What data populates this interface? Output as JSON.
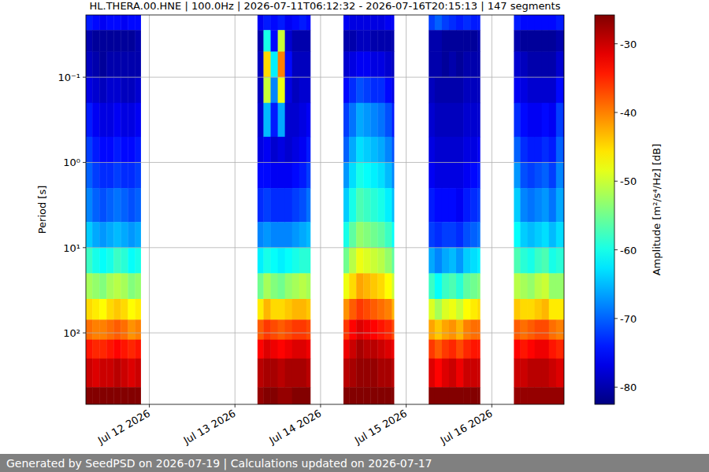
{
  "chart_data": {
    "type": "heatmap",
    "title": "HL.THERA.00.HNE | 100.0Hz | 2026-07-11T06:12:32 - 2026-07-16T20:15:13 | 147 segments",
    "y_label": "Period [s]",
    "footer": "Generated by SeedPSD on 2026-07-19 | Calculations updated on 2026-07-17",
    "log": "y",
    "grid": true,
    "xlim": [
      "2026-07-11T06:12:32",
      "2026-07-16T20:15:13"
    ],
    "xticks": [
      {
        "value": "2026-07-12T00:00:00",
        "label": "Jul 12 2026"
      },
      {
        "value": "2026-07-13T00:00:00",
        "label": "Jul 13 2026"
      },
      {
        "value": "2026-07-14T00:00:00",
        "label": "Jul 14 2026"
      },
      {
        "value": "2026-07-15T00:00:00",
        "label": "Jul 15 2026"
      },
      {
        "value": "2026-07-16T00:00:00",
        "label": "Jul 16 2026"
      }
    ],
    "ylim": [
      690,
      0.0186
    ],
    "yticks": [
      {
        "value": 0.1,
        "label": "10⁻¹"
      },
      {
        "value": 1,
        "label": "10⁰"
      },
      {
        "value": 10,
        "label": "10¹"
      },
      {
        "value": 100,
        "label": "10²"
      }
    ],
    "periods": [
      0.0186,
      0.028,
      0.05,
      0.1,
      0.2,
      0.5,
      1,
      2,
      5,
      10,
      20,
      40,
      70,
      120,
      200,
      434,
      690
    ],
    "colorbar": {
      "label": "Amplitude [m²/s⁴/Hz] [dB]",
      "range": [
        -82.5,
        -25.8
      ],
      "ticks": [
        -80,
        -70,
        -60,
        -50,
        -40,
        -30
      ]
    },
    "columns": [
      {
        "start": "2026-07-11T06:12:32",
        "end": "2026-07-11T08:00:00",
        "values": [
          -74,
          -80,
          -79,
          -77,
          -74,
          -72,
          -70,
          -68,
          -64,
          -58,
          -52,
          -45,
          -39,
          -34,
          -30,
          -26
        ]
      },
      {
        "start": "2026-07-11T08:00:00",
        "end": "2026-07-11T10:00:00",
        "values": [
          -75,
          -81,
          -80,
          -78,
          -76,
          -74,
          -72,
          -70,
          -66,
          -60,
          -53,
          -46,
          -40,
          -35,
          -31,
          -26
        ]
      },
      {
        "start": "2026-07-11T10:00:00",
        "end": "2026-07-11T12:00:00",
        "values": [
          -76,
          -81,
          -81,
          -79,
          -77,
          -75,
          -73,
          -71,
          -67,
          -61,
          -54,
          -47,
          -40,
          -35,
          -30,
          -26
        ]
      },
      {
        "start": "2026-07-11T12:00:00",
        "end": "2026-07-11T14:00:00",
        "values": [
          -75,
          -81,
          -80,
          -78,
          -77,
          -75,
          -73,
          -70,
          -66,
          -60,
          -52,
          -45,
          -39,
          -34,
          -30,
          -26
        ]
      },
      {
        "start": "2026-07-11T14:00:00",
        "end": "2026-07-11T16:00:00",
        "values": [
          -75,
          -81,
          -80,
          -78,
          -76,
          -74,
          -72,
          -69,
          -65,
          -58,
          -51,
          -44,
          -38,
          -33,
          -29,
          -26
        ]
      },
      {
        "start": "2026-07-11T16:00:00",
        "end": "2026-07-11T18:00:00",
        "values": [
          -76,
          -81,
          -80,
          -79,
          -77,
          -75,
          -73,
          -70,
          -66,
          -59,
          -52,
          -45,
          -39,
          -34,
          -30,
          -26
        ]
      },
      {
        "start": "2026-07-11T18:00:00",
        "end": "2026-07-11T20:00:00",
        "values": [
          -75,
          -81,
          -80,
          -79,
          -77,
          -75,
          -73,
          -71,
          -67,
          -61,
          -54,
          -47,
          -41,
          -35,
          -31,
          -26
        ]
      },
      {
        "start": "2026-07-11T20:00:00",
        "end": "2026-07-11T21:34:00",
        "values": [
          -75,
          -80,
          -80,
          -78,
          -76,
          -74,
          -72,
          -70,
          -66,
          -60,
          -53,
          -46,
          -40,
          -34,
          -30,
          -26
        ]
      },
      {
        "start": "2026-07-13T06:19:00",
        "end": "2026-07-13T08:00:00",
        "values": [
          -76,
          -80,
          -79,
          -79,
          -78,
          -77,
          -75,
          -73,
          -68,
          -62,
          -55,
          -46,
          -38,
          -33,
          -29,
          -27
        ]
      },
      {
        "start": "2026-07-13T08:00:00",
        "end": "2026-07-13T10:00:00",
        "values": [
          -74,
          -60,
          -45,
          -50,
          -65,
          -76,
          -75,
          -72,
          -67,
          -60,
          -52,
          -43,
          -36,
          -31,
          -28,
          -26
        ]
      },
      {
        "start": "2026-07-13T10:00:00",
        "end": "2026-07-13T12:00:00",
        "values": [
          -75,
          -75,
          -62,
          -68,
          -74,
          -78,
          -76,
          -73,
          -68,
          -61,
          -54,
          -45,
          -37,
          -32,
          -28,
          -26
        ]
      },
      {
        "start": "2026-07-13T12:00:00",
        "end": "2026-07-13T14:00:00",
        "values": [
          -74,
          -50,
          -40,
          -48,
          -66,
          -77,
          -76,
          -73,
          -68,
          -62,
          -55,
          -45,
          -38,
          -33,
          -29,
          -27
        ]
      },
      {
        "start": "2026-07-13T14:00:00",
        "end": "2026-07-13T16:00:00",
        "values": [
          -76,
          -78,
          -75,
          -77,
          -78,
          -78,
          -76,
          -73,
          -68,
          -61,
          -53,
          -44,
          -37,
          -32,
          -28,
          -27
        ]
      },
      {
        "start": "2026-07-13T16:00:00",
        "end": "2026-07-13T18:00:00",
        "values": [
          -75,
          -80,
          -79,
          -79,
          -78,
          -77,
          -75,
          -72,
          -67,
          -60,
          -52,
          -43,
          -36,
          -31,
          -28,
          -26
        ]
      },
      {
        "start": "2026-07-13T18:00:00",
        "end": "2026-07-13T20:00:00",
        "values": [
          -74,
          -80,
          -79,
          -78,
          -77,
          -76,
          -74,
          -71,
          -66,
          -59,
          -51,
          -43,
          -36,
          -31,
          -28,
          -26
        ]
      },
      {
        "start": "2026-07-13T20:00:00",
        "end": "2026-07-13T21:07:00",
        "values": [
          -75,
          -80,
          -79,
          -78,
          -76,
          -74,
          -72,
          -69,
          -65,
          -59,
          -52,
          -44,
          -37,
          -32,
          -29,
          -26
        ]
      },
      {
        "start": "2026-07-14T06:25:00",
        "end": "2026-07-14T08:00:00",
        "values": [
          -76,
          -80,
          -78,
          -75,
          -72,
          -70,
          -67,
          -64,
          -60,
          -55,
          -48,
          -41,
          -36,
          -32,
          -29,
          -26
        ]
      },
      {
        "start": "2026-07-14T08:00:00",
        "end": "2026-07-14T10:00:00",
        "values": [
          -77,
          -80,
          -77,
          -73,
          -69,
          -66,
          -63,
          -60,
          -56,
          -51,
          -45,
          -38,
          -33,
          -30,
          -28,
          -26
        ]
      },
      {
        "start": "2026-07-14T10:00:00",
        "end": "2026-07-14T12:00:00",
        "values": [
          -77,
          -79,
          -76,
          -71,
          -66,
          -63,
          -60,
          -57,
          -53,
          -48,
          -42,
          -36,
          -31,
          -28,
          -27,
          -26
        ]
      },
      {
        "start": "2026-07-14T12:00:00",
        "end": "2026-07-14T14:00:00",
        "values": [
          -77,
          -79,
          -76,
          -72,
          -67,
          -64,
          -61,
          -58,
          -54,
          -49,
          -43,
          -37,
          -32,
          -29,
          -27,
          -26
        ]
      },
      {
        "start": "2026-07-14T14:00:00",
        "end": "2026-07-14T16:00:00",
        "values": [
          -77,
          -80,
          -77,
          -73,
          -68,
          -65,
          -62,
          -59,
          -55,
          -50,
          -44,
          -38,
          -33,
          -29,
          -27,
          -26
        ]
      },
      {
        "start": "2026-07-14T16:00:00",
        "end": "2026-07-14T18:00:00",
        "values": [
          -77,
          -80,
          -77,
          -73,
          -69,
          -66,
          -63,
          -60,
          -56,
          -51,
          -45,
          -39,
          -34,
          -30,
          -28,
          -26
        ]
      },
      {
        "start": "2026-07-14T18:00:00",
        "end": "2026-07-14T20:00:00",
        "values": [
          -76,
          -80,
          -78,
          -75,
          -71,
          -68,
          -65,
          -62,
          -58,
          -53,
          -47,
          -40,
          -35,
          -31,
          -28,
          -26
        ]
      },
      {
        "start": "2026-07-14T20:00:00",
        "end": "2026-07-14T20:34:00",
        "values": [
          -76,
          -80,
          -79,
          -77,
          -74,
          -71,
          -68,
          -65,
          -61,
          -56,
          -50,
          -43,
          -37,
          -32,
          -29,
          -26
        ]
      },
      {
        "start": "2026-07-15T06:19:00",
        "end": "2026-07-15T08:00:00",
        "values": [
          -72,
          -80,
          -80,
          -79,
          -78,
          -77,
          -76,
          -74,
          -72,
          -66,
          -58,
          -49,
          -42,
          -36,
          -31,
          -26
        ]
      },
      {
        "start": "2026-07-15T08:00:00",
        "end": "2026-07-15T10:00:00",
        "values": [
          -70,
          -80,
          -80,
          -80,
          -79,
          -78,
          -77,
          -75,
          -73,
          -68,
          -61,
          -52,
          -44,
          -38,
          -33,
          -26
        ]
      },
      {
        "start": "2026-07-15T10:00:00",
        "end": "2026-07-15T12:00:00",
        "values": [
          -72,
          -81,
          -81,
          -80,
          -79,
          -78,
          -77,
          -75,
          -72,
          -66,
          -58,
          -49,
          -42,
          -36,
          -31,
          -26
        ]
      },
      {
        "start": "2026-07-15T12:00:00",
        "end": "2026-07-15T14:00:00",
        "values": [
          -73,
          -81,
          -80,
          -80,
          -79,
          -78,
          -77,
          -75,
          -72,
          -65,
          -57,
          -48,
          -41,
          -35,
          -30,
          -26
        ]
      },
      {
        "start": "2026-07-15T14:00:00",
        "end": "2026-07-15T16:00:00",
        "values": [
          -74,
          -81,
          -81,
          -80,
          -79,
          -78,
          -77,
          -76,
          -73,
          -67,
          -59,
          -50,
          -43,
          -37,
          -32,
          -26
        ]
      },
      {
        "start": "2026-07-15T16:00:00",
        "end": "2026-07-15T18:00:00",
        "values": [
          -73,
          -81,
          -80,
          -79,
          -78,
          -77,
          -76,
          -74,
          -71,
          -64,
          -56,
          -47,
          -40,
          -35,
          -30,
          -26
        ]
      },
      {
        "start": "2026-07-15T18:00:00",
        "end": "2026-07-15T20:00:00",
        "values": [
          -74,
          -81,
          -80,
          -79,
          -78,
          -77,
          -75,
          -73,
          -70,
          -63,
          -55,
          -46,
          -39,
          -34,
          -30,
          -26
        ]
      },
      {
        "start": "2026-07-15T20:00:00",
        "end": "2026-07-15T20:41:00",
        "values": [
          -74,
          -80,
          -80,
          -79,
          -78,
          -76,
          -74,
          -72,
          -69,
          -62,
          -54,
          -45,
          -39,
          -34,
          -30,
          -26
        ]
      },
      {
        "start": "2026-07-16T06:12:00",
        "end": "2026-07-16T08:00:00",
        "values": [
          -74,
          -80,
          -78,
          -76,
          -73,
          -70,
          -67,
          -64,
          -61,
          -57,
          -51,
          -44,
          -38,
          -33,
          -30,
          -27
        ]
      },
      {
        "start": "2026-07-16T08:00:00",
        "end": "2026-07-16T10:00:00",
        "values": [
          -75,
          -81,
          -79,
          -77,
          -75,
          -73,
          -71,
          -68,
          -64,
          -59,
          -52,
          -45,
          -39,
          -34,
          -30,
          -27
        ]
      },
      {
        "start": "2026-07-16T10:00:00",
        "end": "2026-07-16T12:00:00",
        "values": [
          -75,
          -81,
          -80,
          -78,
          -76,
          -74,
          -72,
          -69,
          -65,
          -60,
          -53,
          -45,
          -38,
          -33,
          -29,
          -27
        ]
      },
      {
        "start": "2026-07-16T12:00:00",
        "end": "2026-07-16T14:00:00",
        "values": [
          -75,
          -81,
          -80,
          -78,
          -76,
          -74,
          -71,
          -68,
          -64,
          -58,
          -51,
          -44,
          -37,
          -32,
          -29,
          -27
        ]
      },
      {
        "start": "2026-07-16T14:00:00",
        "end": "2026-07-16T16:00:00",
        "values": [
          -75,
          -81,
          -80,
          -78,
          -75,
          -73,
          -70,
          -67,
          -63,
          -57,
          -50,
          -43,
          -37,
          -32,
          -29,
          -27
        ]
      },
      {
        "start": "2026-07-16T16:00:00",
        "end": "2026-07-16T18:00:00",
        "values": [
          -75,
          -81,
          -80,
          -78,
          -76,
          -74,
          -72,
          -69,
          -65,
          -60,
          -53,
          -46,
          -39,
          -34,
          -30,
          -27
        ]
      },
      {
        "start": "2026-07-16T18:00:00",
        "end": "2026-07-16T20:00:00",
        "values": [
          -74,
          -80,
          -78,
          -75,
          -72,
          -70,
          -68,
          -66,
          -63,
          -59,
          -53,
          -46,
          -40,
          -35,
          -31,
          -27
        ]
      },
      {
        "start": "2026-07-16T20:00:00",
        "end": "2026-07-16T20:15:13",
        "values": [
          -75,
          -81,
          -80,
          -78,
          -76,
          -74,
          -72,
          -69,
          -65,
          -59,
          -52,
          -45,
          -39,
          -34,
          -30,
          -27
        ]
      }
    ]
  }
}
